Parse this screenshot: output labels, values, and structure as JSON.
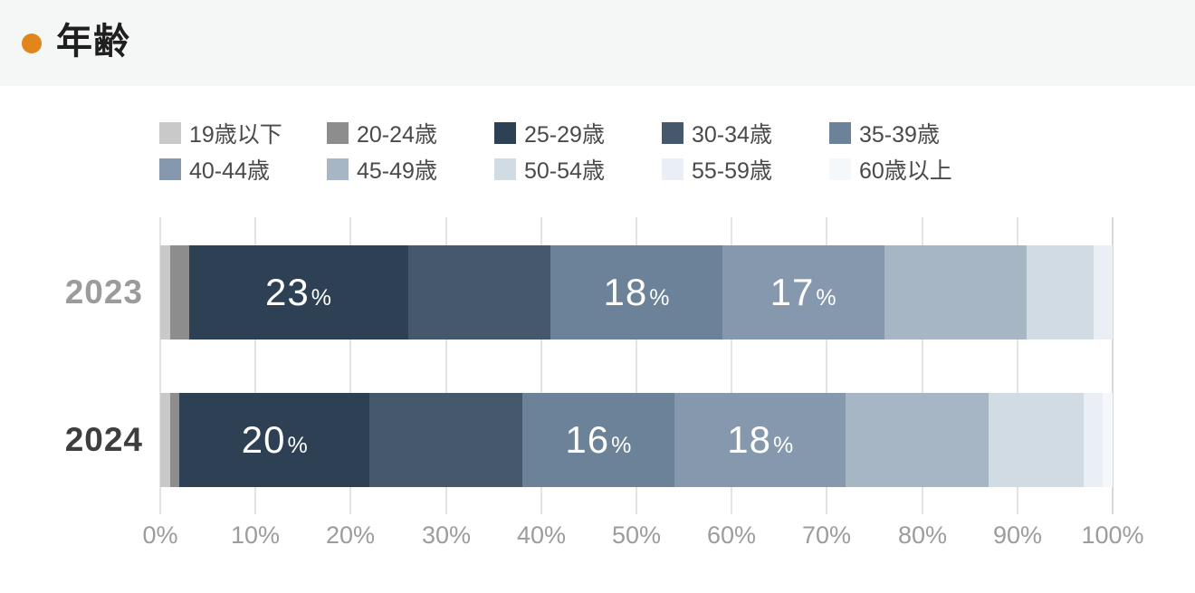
{
  "header": {
    "title": "年齢",
    "bullet_color": "#e2861b"
  },
  "chart_data": {
    "type": "bar",
    "subtype": "horizontal-stacked",
    "title": "年齢",
    "categories": [
      "2023",
      "2024"
    ],
    "category_label_colors": [
      "#9b9b9b",
      "#3e3e3e"
    ],
    "series": [
      {
        "name": "19歳以下",
        "color": "#c9c9c9",
        "values": [
          1,
          1
        ],
        "show_labels": [
          false,
          false
        ]
      },
      {
        "name": "20-24歳",
        "color": "#8d8d8d",
        "values": [
          2,
          1
        ],
        "show_labels": [
          false,
          false
        ]
      },
      {
        "name": "25-29歳",
        "color": "#2e4154",
        "values": [
          23,
          20
        ],
        "show_labels": [
          true,
          true
        ]
      },
      {
        "name": "30-34歳",
        "color": "#46596c",
        "values": [
          15,
          16
        ],
        "show_labels": [
          false,
          false
        ]
      },
      {
        "name": "35-39歳",
        "color": "#6c8298",
        "values": [
          18,
          16
        ],
        "show_labels": [
          true,
          true
        ]
      },
      {
        "name": "40-44歳",
        "color": "#8598ad",
        "values": [
          17,
          18
        ],
        "show_labels": [
          true,
          true
        ]
      },
      {
        "name": "45-49歳",
        "color": "#a6b6c5",
        "values": [
          15,
          15
        ],
        "show_labels": [
          false,
          false
        ]
      },
      {
        "name": "50-54歳",
        "color": "#d1dbe4",
        "values": [
          7,
          10
        ],
        "show_labels": [
          false,
          false
        ]
      },
      {
        "name": "55-59歳",
        "color": "#e9eff4",
        "values": [
          2,
          2
        ],
        "show_labels": [
          false,
          false
        ]
      },
      {
        "name": "60歳以上",
        "color": "#f4f8fa",
        "values": [
          0,
          1
        ],
        "show_labels": [
          false,
          false
        ]
      }
    ],
    "x_ticks": [
      "0%",
      "10%",
      "20%",
      "30%",
      "40%",
      "50%",
      "60%",
      "70%",
      "80%",
      "90%",
      "100%"
    ],
    "xlim": [
      0,
      100
    ],
    "grid": true,
    "legend_position": "top",
    "value_suffix": "%"
  }
}
